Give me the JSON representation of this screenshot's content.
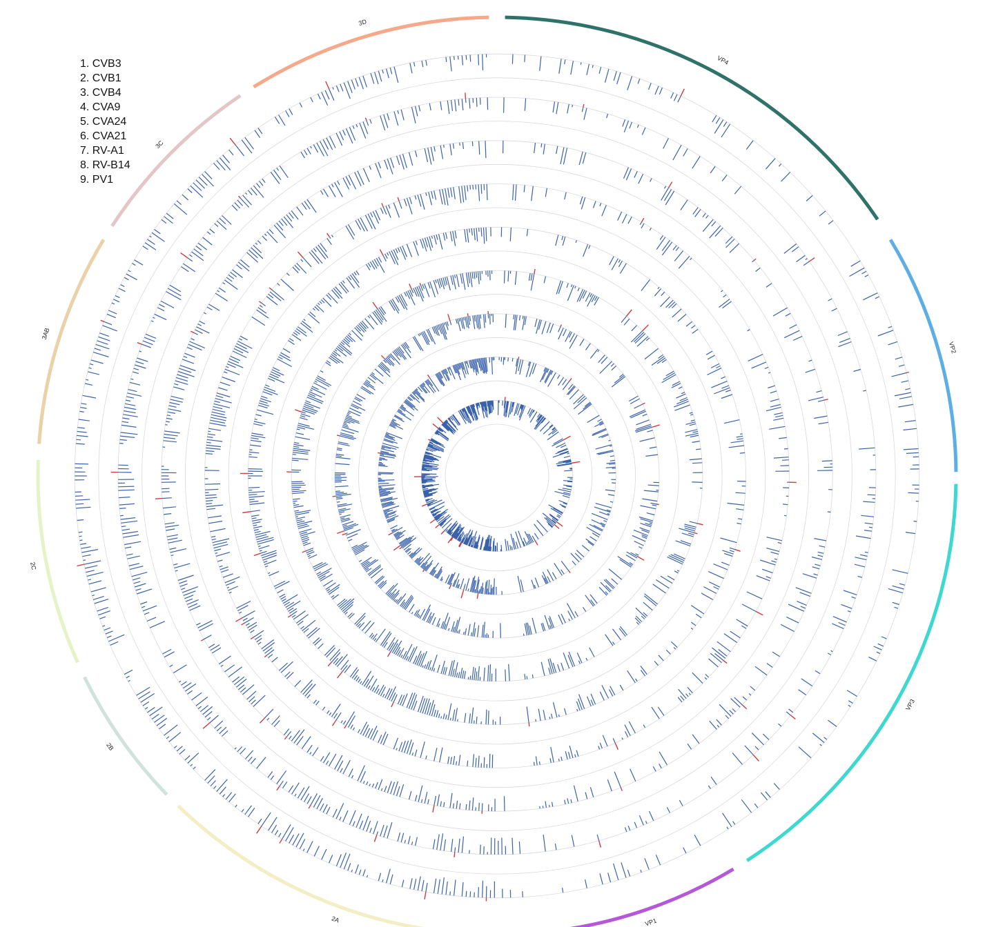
{
  "legend": {
    "items": [
      "1. CVB3",
      "2. CVB1",
      "3. CVB4",
      "4. CVA9",
      "5. CVA24",
      "6. CVA21",
      "7. RV-A1",
      "8. RV-B14",
      "9. PV1"
    ]
  },
  "segments": [
    {
      "name": "VP4",
      "color": "#2e7268"
    },
    {
      "name": "VP2",
      "color": "#5eaee6"
    },
    {
      "name": "VP3",
      "color": "#3fd8d0"
    },
    {
      "name": "VP1",
      "color": "#b457d9"
    },
    {
      "name": "2A",
      "color": "#f3eec4"
    },
    {
      "name": "2B",
      "color": "#cfe3dc"
    },
    {
      "name": "2C",
      "color": "#e5f3c6"
    },
    {
      "name": "3AB",
      "color": "#ead1a8"
    },
    {
      "name": "3C",
      "color": "#e4c6c9"
    },
    {
      "name": "3D",
      "color": "#f5a98a"
    }
  ],
  "colors": {
    "positive": "#d03b3b",
    "negative": "#3a62ab",
    "ring": "#d9d9d9"
  }
}
